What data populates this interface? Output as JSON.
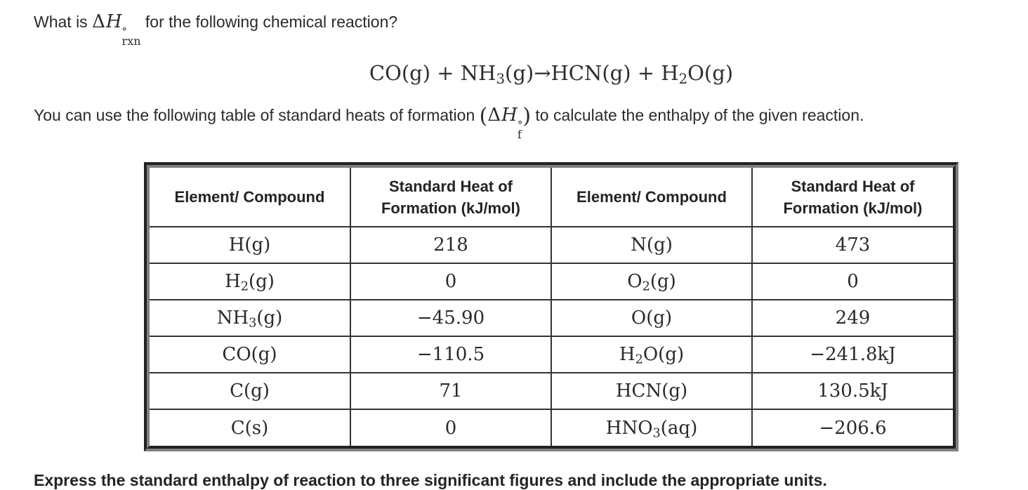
{
  "colors": {
    "text": "#2b2b2b",
    "frame_dark": "#222222",
    "frame_gray": "#7f7f7f",
    "cell_border": "#333333",
    "background": "#ffffff"
  },
  "question": {
    "prefix": "What is ",
    "math": {
      "delta": "Δ",
      "symbol": "H",
      "sup": "°",
      "sub": "rxn"
    },
    "suffix": " for the following chemical reaction?"
  },
  "equation": {
    "text": "CO(g) + NH₃(g)→HCN(g) + H₂O(g)"
  },
  "intro": {
    "prefix": "You can use the following table of standard heats of formation ",
    "open_paren": "(",
    "math": {
      "delta": "Δ",
      "symbol": "H",
      "sup": "°",
      "sub": "f"
    },
    "close_paren": ")",
    "suffix": " to calculate the enthalpy of the given reaction."
  },
  "table": {
    "headers": [
      "Element/ Compound",
      "Standard Heat of Formation (kJ/mol)",
      "Element/ Compound",
      "Standard Heat of Formation (kJ/mol)"
    ],
    "rows": [
      [
        "H(g)",
        "218",
        "N(g)",
        "473"
      ],
      [
        "H₂(g)",
        "0",
        "O₂(g)",
        "0"
      ],
      [
        "NH₃(g)",
        "−45.90",
        "O(g)",
        "249"
      ],
      [
        "CO(g)",
        "−110.5",
        "H₂O(g)",
        "−241.8kJ"
      ],
      [
        "C(g)",
        "71",
        "HCN(g)",
        "130.5kJ"
      ],
      [
        "C(s)",
        "0",
        "HNO₃(aq)",
        "−206.6"
      ]
    ]
  },
  "footer": "Express the standard enthalpy of reaction to three significant figures and include the appropriate units."
}
